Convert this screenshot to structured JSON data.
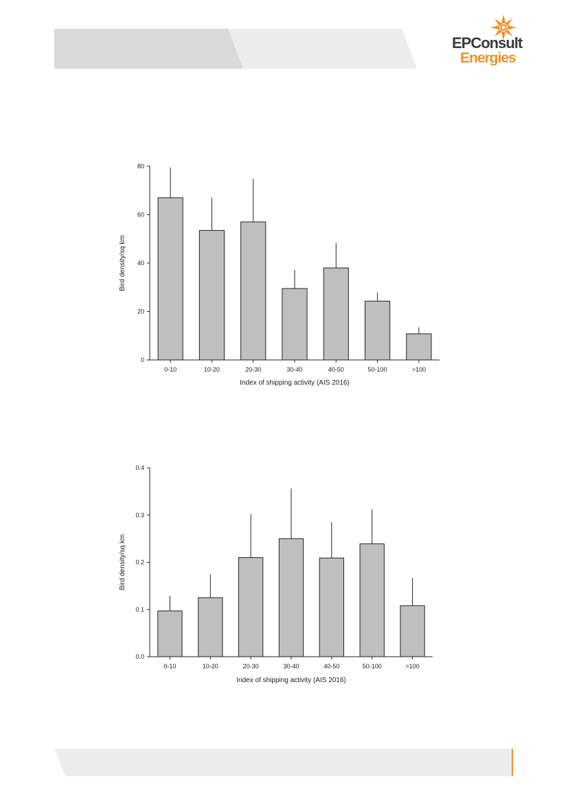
{
  "header": {
    "logo_line1": "EPConsult",
    "logo_line2": "Energies",
    "brand_orange": "#f0902a",
    "brand_dark": "#3a3a3a"
  },
  "chart_data": [
    {
      "type": "bar",
      "categories": [
        "0-10",
        "10-20",
        "20-30",
        "30-40",
        "40-50",
        "50-100",
        ">100"
      ],
      "values": [
        67,
        53.5,
        57,
        29.5,
        38,
        24.3,
        10.8
      ],
      "error_upper": [
        79.5,
        67,
        74.8,
        37.2,
        48.3,
        27.8,
        13.5
      ],
      "ylim": [
        0,
        80
      ],
      "yticks": [
        "0",
        "20",
        "40",
        "60",
        "80"
      ],
      "xlabel": "Index of shipping activity (AIS 2016)",
      "ylabel": "Bird density/sq km",
      "bar_color": "#bfbfbf",
      "grid": false
    },
    {
      "type": "bar",
      "categories": [
        "0-10",
        "10-20",
        "20-30",
        "30-40",
        "40-50",
        "50-100",
        ">100"
      ],
      "values": [
        0.097,
        0.125,
        0.21,
        0.25,
        0.209,
        0.239,
        0.108
      ],
      "error_upper": [
        0.129,
        0.174,
        0.302,
        0.356,
        0.285,
        0.312,
        0.167
      ],
      "ylim": [
        0,
        0.4
      ],
      "yticks": [
        "0.0",
        "0.1",
        "0.2",
        "0.3",
        "0.4"
      ],
      "xlabel": "Index of shipping activity (AIS 2016)",
      "ylabel": "Bird density/sq km",
      "bar_color": "#bfbfbf",
      "grid": false
    }
  ]
}
